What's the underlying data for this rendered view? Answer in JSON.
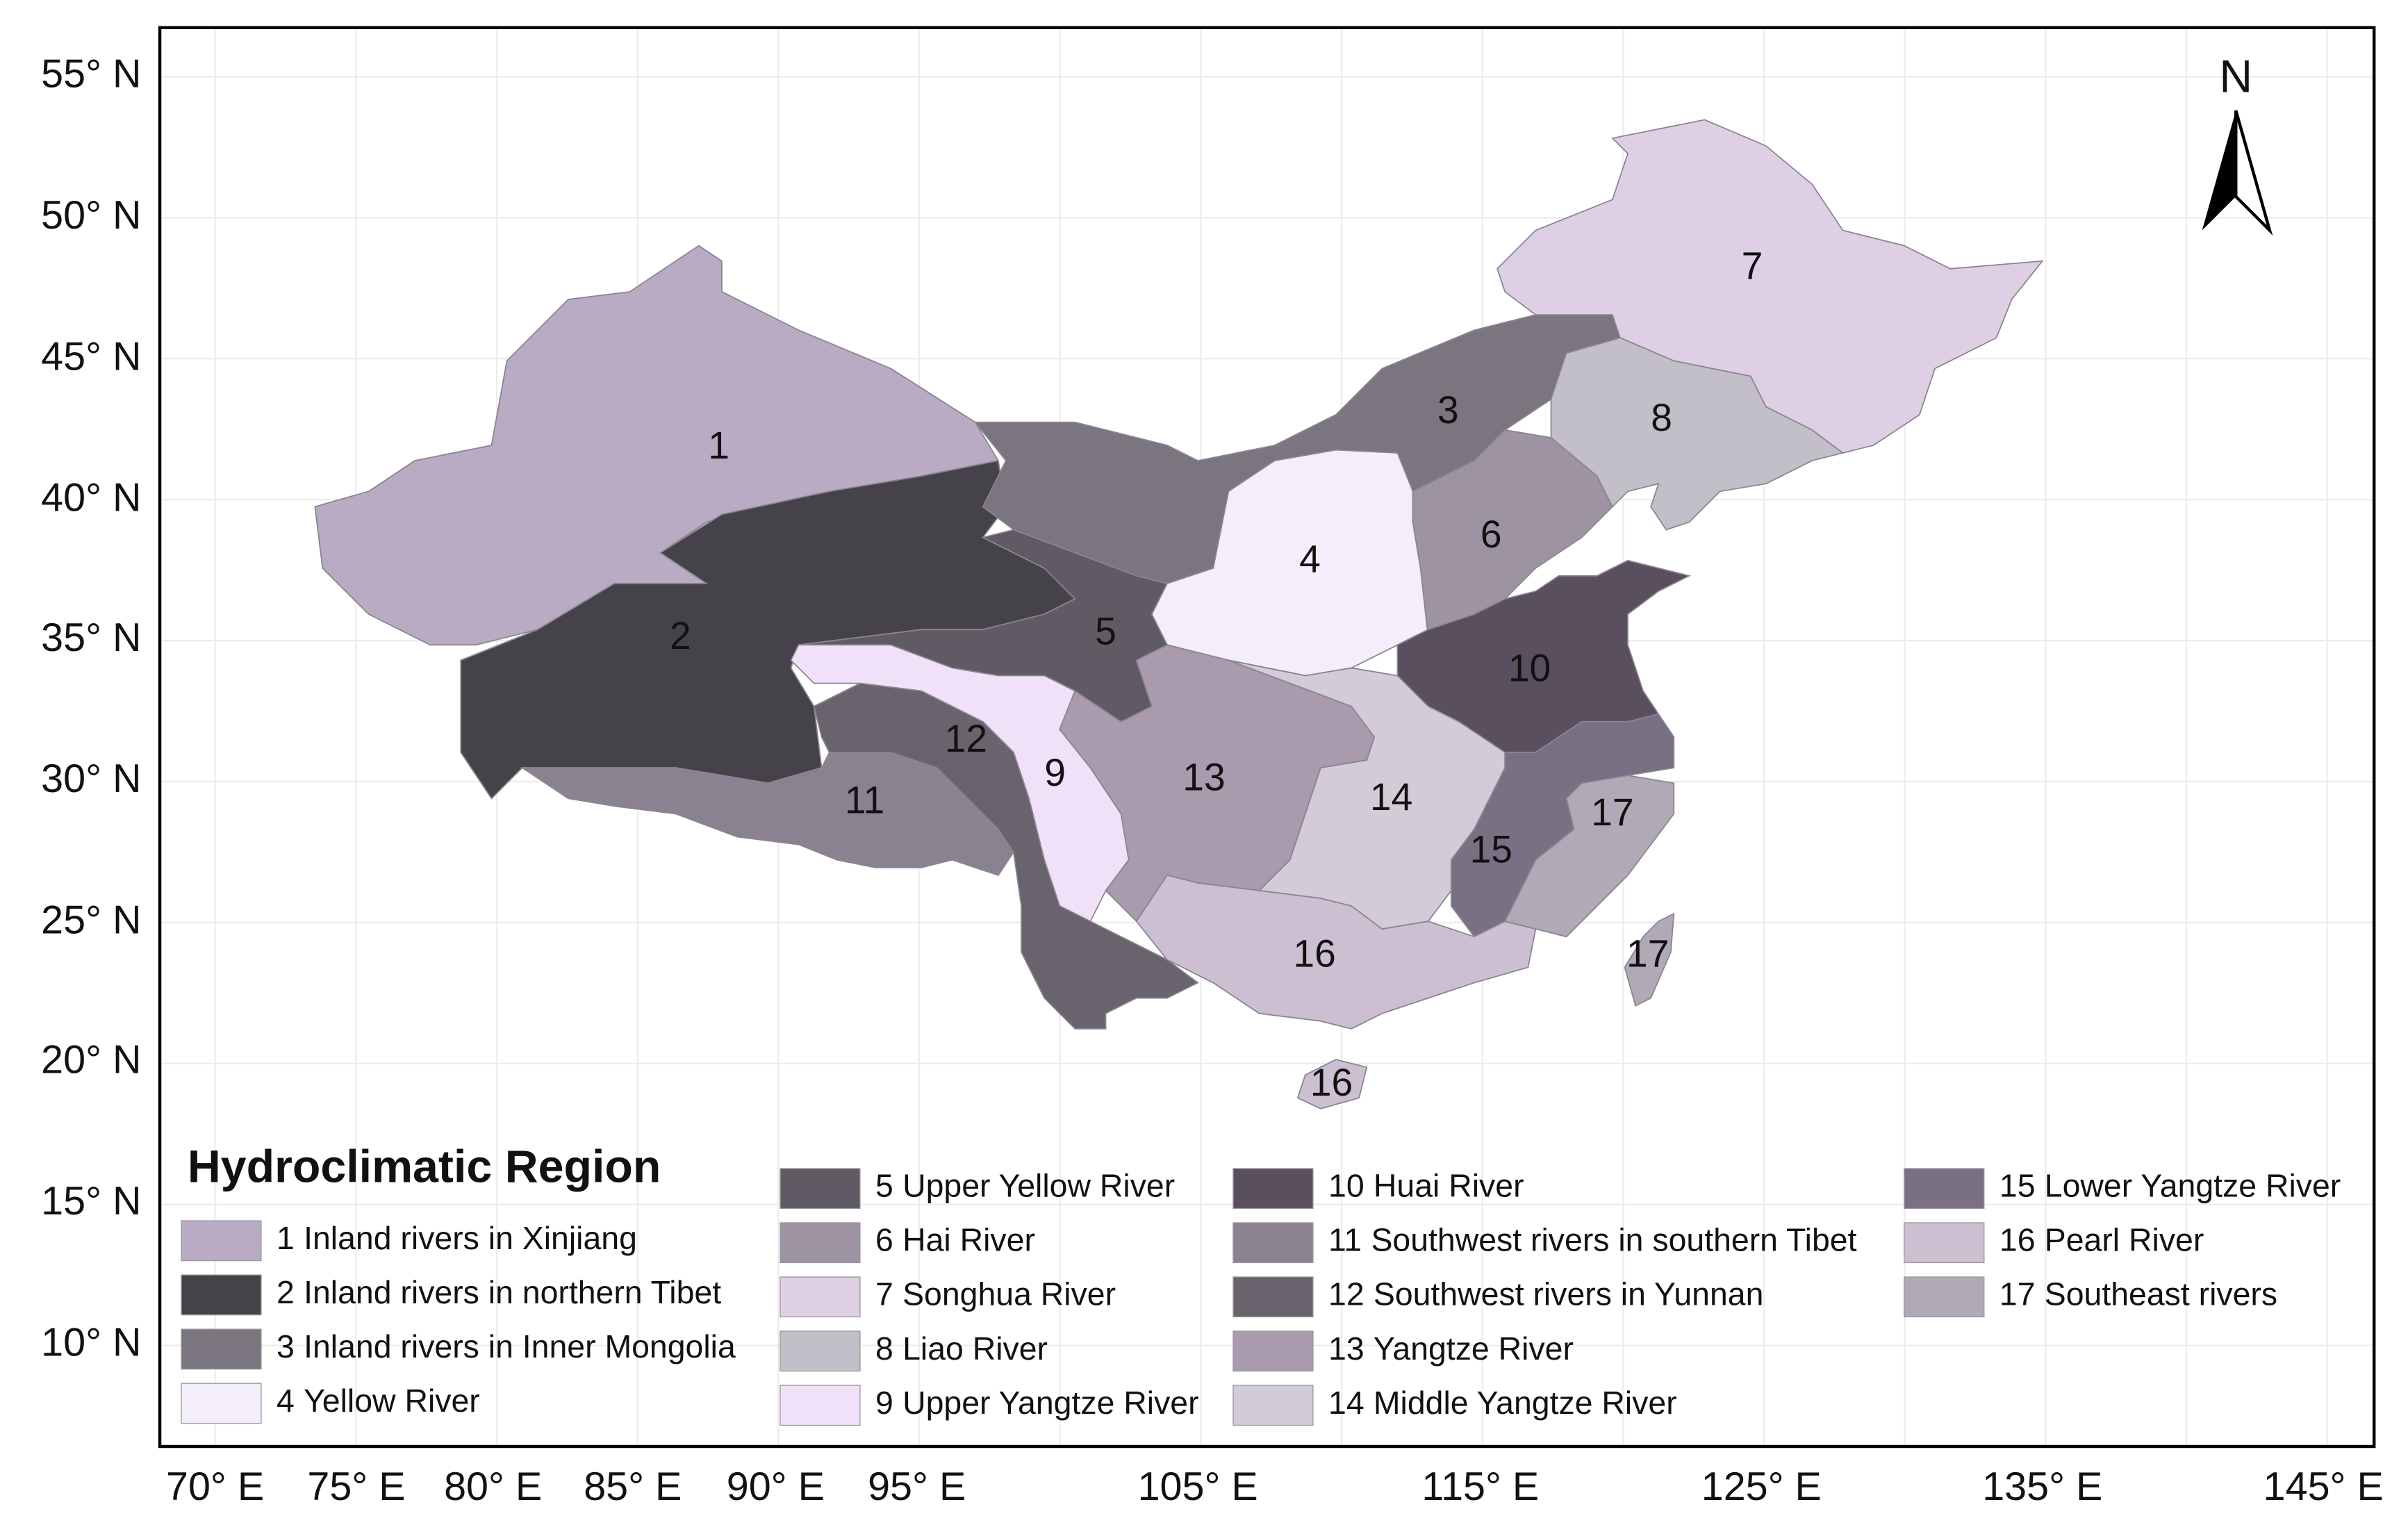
{
  "north_label": "N",
  "lat_labels": [
    "55° N",
    "50° N",
    "45° N",
    "40° N",
    "35° N",
    "30° N",
    "25° N",
    "20° N",
    "15° N",
    "10° N"
  ],
  "lon_labels": [
    "70° E",
    "75° E",
    "80° E",
    "85° E",
    "90° E",
    "95° E",
    "105° E",
    "115° E",
    "125° E",
    "135° E",
    "145° E"
  ],
  "legend": {
    "title": "Hydroclimatic Region",
    "regions": [
      {
        "id": "1",
        "name": "Inland rivers in Xinjiang",
        "color": "#b8abc3"
      },
      {
        "id": "2",
        "name": "Inland rivers in northern Tibet",
        "color": "#464249"
      },
      {
        "id": "3",
        "name": "Inland rivers in Inner Mongolia",
        "color": "#7b7580"
      },
      {
        "id": "4",
        "name": "Yellow River",
        "color": "#f4eefa"
      },
      {
        "id": "5",
        "name": "Upper Yellow River",
        "color": "#5f5a63"
      },
      {
        "id": "6",
        "name": "Hai River",
        "color": "#9d93a3"
      },
      {
        "id": "7",
        "name": "Songhua River",
        "color": "#dfcfe4"
      },
      {
        "id": "8",
        "name": "Liao River",
        "color": "#c3bfc8"
      },
      {
        "id": "9",
        "name": "Upper Yangtze River",
        "color": "#f1e1f8"
      },
      {
        "id": "10",
        "name": "Huai River",
        "color": "#5a4f5e"
      },
      {
        "id": "11",
        "name": "Southwest rivers in southern Tibet",
        "color": "#8a8290"
      },
      {
        "id": "12",
        "name": "Southwest rivers in Yunnan",
        "color": "#68636c"
      },
      {
        "id": "13",
        "name": "Yangtze River",
        "color": "#a99aae"
      },
      {
        "id": "14",
        "name": "Middle Yangtze River",
        "color": "#d3ccd8"
      },
      {
        "id": "15",
        "name": "Lower Yangtze River",
        "color": "#7a7083"
      },
      {
        "id": "16",
        "name": "Pearl River",
        "color": "#cbbfd1"
      },
      {
        "id": "17",
        "name": "Southeast rivers",
        "color": "#b1a9b6"
      }
    ]
  }
}
